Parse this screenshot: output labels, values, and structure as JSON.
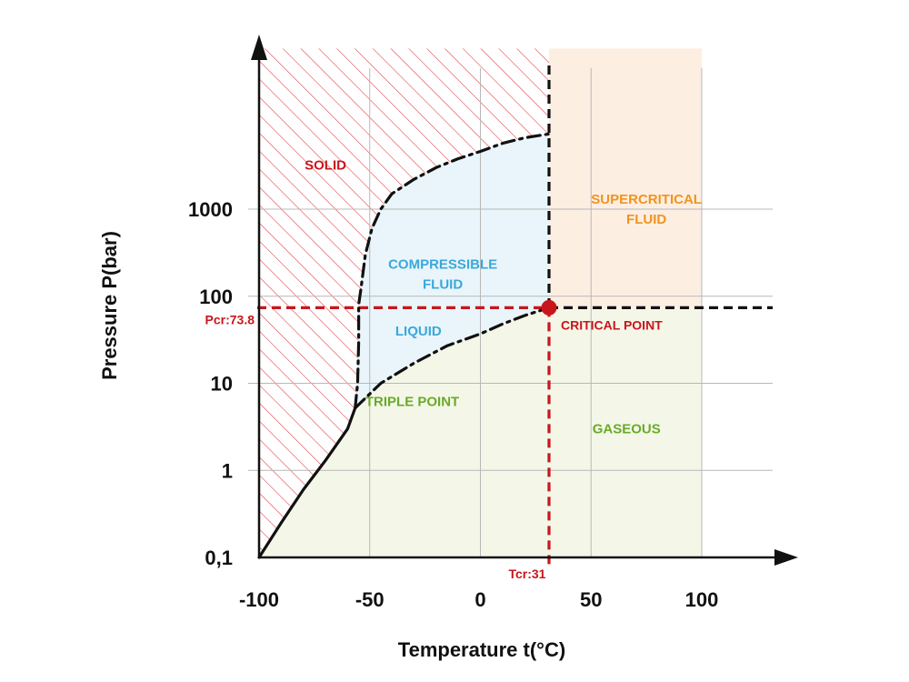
{
  "chart_data": {
    "type": "line",
    "x_axis": {
      "label": "Temperature  t(°C)",
      "ticks": [
        -100,
        -50,
        0,
        50,
        100
      ],
      "tick_labels": [
        "-100",
        "-50",
        "0",
        "50",
        "100"
      ],
      "range": [
        -100,
        135
      ]
    },
    "y_axis": {
      "label": "Pressure  P(bar)",
      "scale": "log",
      "ticks": [
        0.1,
        1,
        10,
        100,
        1000
      ],
      "tick_labels": [
        "0,1",
        "1",
        "10",
        "100",
        "1000"
      ],
      "range": [
        0.1,
        70000
      ]
    },
    "grid": true,
    "regions": [
      {
        "label": "SOLID",
        "color": "#c8161d",
        "fill": "hatched"
      },
      {
        "label": "COMPRESSIBLE\nFLUID",
        "color": "#3aa8dc",
        "fill": "#e9f5fa"
      },
      {
        "label": "LIQUID",
        "color": "#3aa8dc",
        "fill": "#e9f5fa"
      },
      {
        "label": "SUPERCRITICAL\nFLUID",
        "color": "#f0941f",
        "fill": "#fdeee2"
      },
      {
        "label": "GASEOUS",
        "color": "#6aaa2a",
        "fill": "#f4f7e8"
      },
      {
        "label": "TRIPLE POINT",
        "color": "#6aaa2a"
      }
    ],
    "critical_point": {
      "t": 31,
      "p": 73.8,
      "label": "CRITICAL POINT",
      "t_label": "Tcr:31",
      "p_label": "Pcr:73.8",
      "color": "#c8161d"
    },
    "triple_point": {
      "t": -56.6,
      "p": 5.2
    },
    "series": [
      {
        "style": "solid",
        "points": [
          [
            -100,
            0.1
          ],
          [
            -90,
            0.25
          ],
          [
            -80,
            0.6
          ],
          [
            -70,
            1.3
          ],
          [
            -60,
            3.0
          ],
          [
            -56.6,
            5.2
          ]
        ]
      },
      {
        "style": "dash-dot",
        "points": [
          [
            -56.6,
            5.2
          ],
          [
            -45,
            10
          ],
          [
            -30,
            17
          ],
          [
            -15,
            27
          ],
          [
            0,
            37
          ],
          [
            10,
            48
          ],
          [
            20,
            60
          ],
          [
            31,
            73.8
          ]
        ]
      },
      {
        "style": "dash-dot",
        "points": [
          [
            -56.6,
            5.2
          ],
          [
            -55.5,
            10
          ],
          [
            -55,
            30
          ],
          [
            -55,
            80
          ],
          [
            -54,
            120
          ],
          [
            -52,
            300
          ],
          [
            -49,
            600
          ],
          [
            -45,
            1000
          ],
          [
            -40,
            1500
          ],
          [
            -30,
            2200
          ],
          [
            -20,
            3000
          ],
          [
            -10,
            3800
          ],
          [
            0,
            4600
          ],
          [
            10,
            5700
          ],
          [
            20,
            6600
          ],
          [
            31,
            7300
          ]
        ]
      }
    ]
  }
}
